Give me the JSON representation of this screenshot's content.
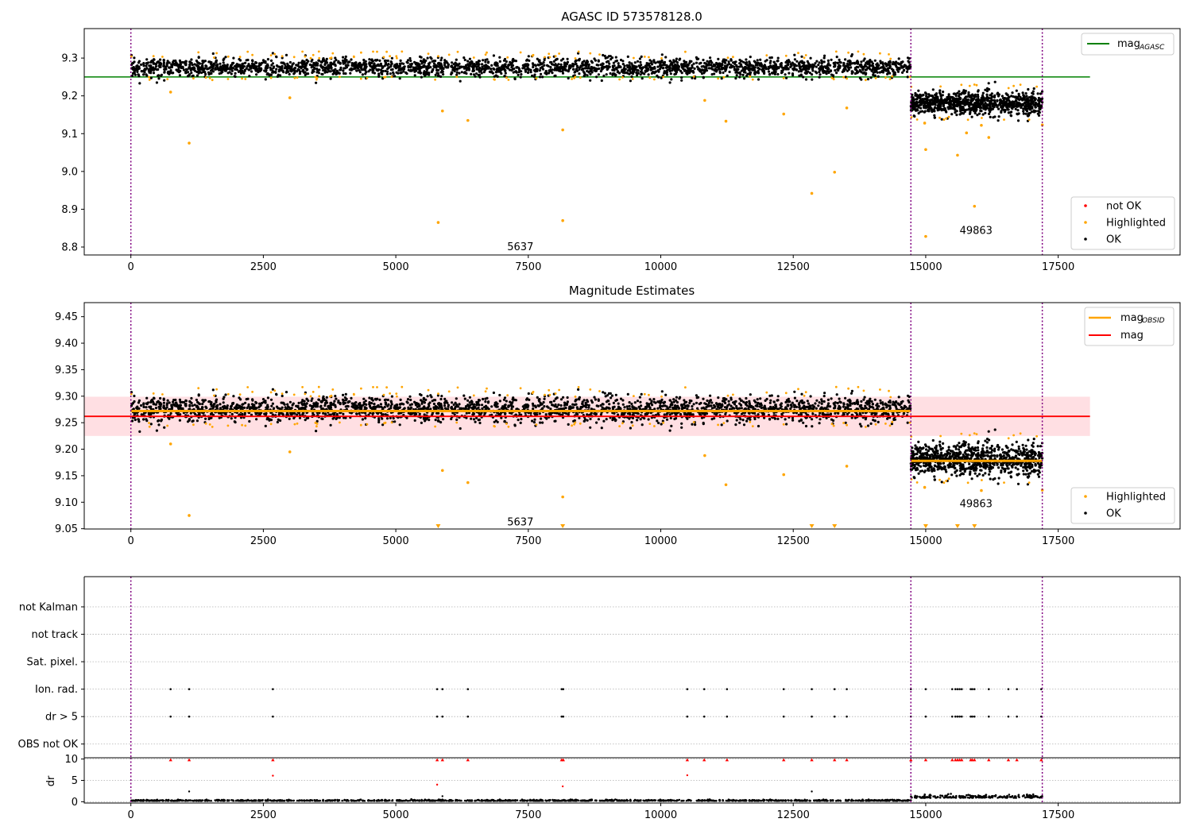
{
  "figure": {
    "background": "#ffffff"
  },
  "colors": {
    "ok": "#000000",
    "highlighted": "#ffa500",
    "not_ok": "#ff0000",
    "agasc_line": "#008000",
    "mag_line": "#ff0000",
    "mag_band": "#ffc0c8",
    "obs_line": "#ffa500",
    "obs_boundary": "#800080",
    "obs_band_dark": "#3a1408"
  },
  "chart_data": [
    {
      "type": "scatter",
      "id": "top",
      "title": "AGASC ID 573578128.0",
      "xlabel": "",
      "ylabel": "",
      "xlim": [
        -880,
        19800
      ],
      "ylim": [
        8.779,
        9.378
      ],
      "xticks": [
        0,
        2500,
        5000,
        7500,
        10000,
        12500,
        15000,
        17500
      ],
      "xtick_labels": [
        "0",
        "2500",
        "5000",
        "7500",
        "10000",
        "12500",
        "15000",
        "17500"
      ],
      "yticks": [
        8.8,
        8.9,
        9.0,
        9.1,
        9.2,
        9.3
      ],
      "ytick_labels": [
        "8.8",
        "8.9",
        "9.0",
        "9.1",
        "9.2",
        "9.3"
      ],
      "grid": false,
      "hlines": [
        {
          "name": "mag_AGASC",
          "y": 9.25,
          "x_range": [
            -880,
            18100
          ]
        }
      ],
      "obs_boundaries": [
        0,
        14720,
        17200
      ],
      "observations": [
        {
          "label": "5637",
          "x_range": [
            0,
            14720
          ],
          "mean": 9.275,
          "spread": 0.012,
          "label_x": 7350,
          "label_y": 8.8
        },
        {
          "label": "49863",
          "x_range": [
            14720,
            17200
          ],
          "mean": 9.18,
          "spread": 0.015,
          "label_x": 15950,
          "label_y": 8.843
        }
      ],
      "highlighted_points": [
        [
          750,
          9.21
        ],
        [
          1100,
          9.075
        ],
        [
          3000,
          9.195
        ],
        [
          5800,
          8.865
        ],
        [
          5880,
          9.16
        ],
        [
          6360,
          9.135
        ],
        [
          8150,
          9.11
        ],
        [
          8150,
          8.87
        ],
        [
          10830,
          9.188
        ],
        [
          11230,
          9.133
        ],
        [
          12320,
          9.152
        ],
        [
          12850,
          8.942
        ],
        [
          13280,
          8.998
        ],
        [
          13510,
          9.168
        ],
        [
          14980,
          9.128
        ],
        [
          15000,
          9.058
        ],
        [
          15000,
          8.828
        ],
        [
          15600,
          9.043
        ],
        [
          15770,
          9.102
        ],
        [
          15920,
          8.908
        ],
        [
          16050,
          9.122
        ],
        [
          16190,
          9.09
        ],
        [
          17200,
          9.123
        ]
      ],
      "legend": {
        "position": "lower-right",
        "entries": [
          "not OK",
          "Highlighted",
          "OK"
        ]
      },
      "legend_lines": {
        "position": "upper-right",
        "entries": [
          "mag",
          "AGASC"
        ]
      }
    },
    {
      "type": "scatter",
      "id": "middle",
      "title": "Magnitude Estimates",
      "xlabel": "",
      "ylabel": "",
      "xlim": [
        -880,
        19800
      ],
      "ylim": [
        9.0495,
        9.4765
      ],
      "xticks": [
        0,
        2500,
        5000,
        7500,
        10000,
        12500,
        15000,
        17500
      ],
      "xtick_labels": [
        "0",
        "2500",
        "5000",
        "7500",
        "10000",
        "12500",
        "15000",
        "17500"
      ],
      "yticks": [
        9.05,
        9.1,
        9.15,
        9.2,
        9.25,
        9.3,
        9.35,
        9.4,
        9.45
      ],
      "ytick_labels": [
        "9.05",
        "9.10",
        "9.15",
        "9.20",
        "9.25",
        "9.30",
        "9.35",
        "9.40",
        "9.45"
      ],
      "grid": false,
      "mag_line": {
        "y": 9.262,
        "band": [
          9.225,
          9.299
        ],
        "x_range": [
          -880,
          18100
        ]
      },
      "obs_mag": [
        {
          "x_range": [
            0,
            14720
          ],
          "y": 9.272
        },
        {
          "x_range": [
            14720,
            17200
          ],
          "y": 9.178
        }
      ],
      "obs_boundaries": [
        0,
        14720,
        17200
      ],
      "observations": [
        {
          "label": "5637",
          "label_x": 7350,
          "label_y": 9.062
        },
        {
          "label": "49863",
          "label_x": 15950,
          "label_y": 9.097
        }
      ],
      "highlighted_points": [
        [
          750,
          9.21
        ],
        [
          1100,
          9.075
        ],
        [
          3000,
          9.195
        ],
        [
          5880,
          9.16
        ],
        [
          6360,
          9.137
        ],
        [
          8150,
          9.11
        ],
        [
          10830,
          9.188
        ],
        [
          11230,
          9.133
        ],
        [
          12320,
          9.152
        ],
        [
          13510,
          9.168
        ],
        [
          14980,
          9.128
        ],
        [
          16050,
          9.122
        ],
        [
          17200,
          9.123
        ]
      ],
      "clipped_points_x": [
        5800,
        8150,
        12850,
        13280,
        15000,
        15600,
        15920
      ],
      "legend": {
        "position": "lower-right",
        "entries": [
          "Highlighted",
          "OK"
        ]
      },
      "legend_lines": {
        "position": "upper-right",
        "entries": [
          "mag",
          "OBSID",
          "mag"
        ]
      }
    },
    {
      "type": "scatter",
      "id": "flags",
      "xlim": [
        -880,
        19800
      ],
      "ylim": [
        -0.5,
        6.1
      ],
      "categories": [
        "not Kalman",
        "not track",
        "Sat. pixel.",
        "Ion. rad.",
        "dr > 5",
        "OBS not OK"
      ],
      "category_y": [
        5,
        4,
        3,
        2,
        1,
        0
      ],
      "grid": "horizontal dotted",
      "flag_points": {
        "Ion. rad.": [
          750,
          1100,
          2680,
          5780,
          5880,
          6360,
          8130,
          8160,
          10500,
          10820,
          11250,
          12320,
          12850,
          13280,
          13510,
          14720,
          15000,
          15500,
          15560,
          15600,
          15640,
          15680,
          15850,
          15880,
          15920,
          16190,
          16560,
          16720,
          17180
        ],
        "dr > 5": [
          750,
          1100,
          2680,
          5780,
          5880,
          6360,
          8130,
          8160,
          10500,
          10820,
          11250,
          12320,
          12850,
          13280,
          13510,
          14720,
          15000,
          15500,
          15560,
          15600,
          15640,
          15680,
          15850,
          15880,
          15920,
          16190,
          16560,
          16720,
          17180
        ]
      },
      "obs_boundaries": [
        0,
        14720,
        17200
      ]
    },
    {
      "type": "scatter",
      "id": "dr",
      "ylabel": "dr",
      "xlim": [
        -880,
        19800
      ],
      "ylim": [
        -0.3,
        10.3
      ],
      "xticks": [
        0,
        2500,
        5000,
        7500,
        10000,
        12500,
        15000,
        17500
      ],
      "xtick_labels": [
        "0",
        "2500",
        "5000",
        "7500",
        "10000",
        "12500",
        "15000",
        "17500"
      ],
      "yticks": [
        0,
        5,
        10
      ],
      "ytick_labels": [
        "0",
        "5",
        "10"
      ],
      "grid": "horizontal dotted",
      "clipped_red_x": [
        750,
        1100,
        2680,
        5780,
        5880,
        6360,
        8130,
        8160,
        10500,
        10820,
        11250,
        12320,
        12850,
        13280,
        13510,
        14720,
        15000,
        15500,
        15560,
        15600,
        15640,
        15680,
        15850,
        15880,
        15920,
        16190,
        16560,
        16720,
        17180
      ],
      "red_points": [
        [
          2680,
          6.1
        ],
        [
          5780,
          4.0
        ],
        [
          8150,
          3.6
        ],
        [
          10500,
          6.2
        ]
      ],
      "black_points": [
        [
          1100,
          2.4
        ],
        [
          5880,
          1.3
        ],
        [
          12850,
          2.4
        ]
      ],
      "obs_boundaries": [
        0,
        14720,
        17200
      ]
    }
  ]
}
